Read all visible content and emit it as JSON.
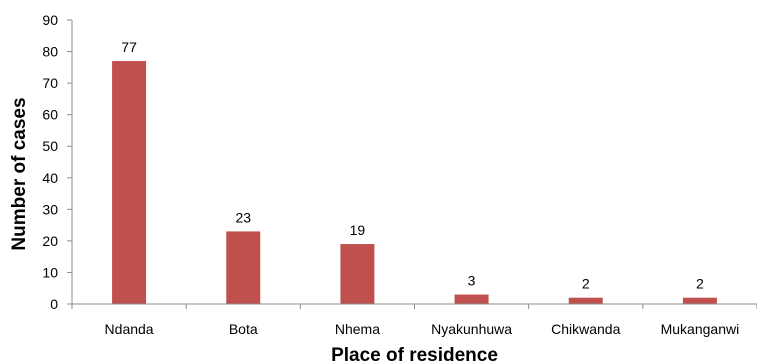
{
  "chart_data": {
    "type": "bar",
    "title": "",
    "xlabel": "Place of residence",
    "ylabel": "Number of cases",
    "categories": [
      "Ndanda",
      "Bota",
      "Nhema",
      "Nyakunhuwa",
      "Chikwanda",
      "Mukanganwi"
    ],
    "series": [
      {
        "values": [
          77,
          23,
          19,
          3,
          2,
          2
        ],
        "color": "#c0504d"
      }
    ],
    "ylim": [
      0,
      90
    ],
    "yticks": [
      0,
      10,
      20,
      30,
      40,
      50,
      60,
      70,
      80,
      90
    ],
    "data_labels": true,
    "grid": false,
    "legend": "none"
  }
}
